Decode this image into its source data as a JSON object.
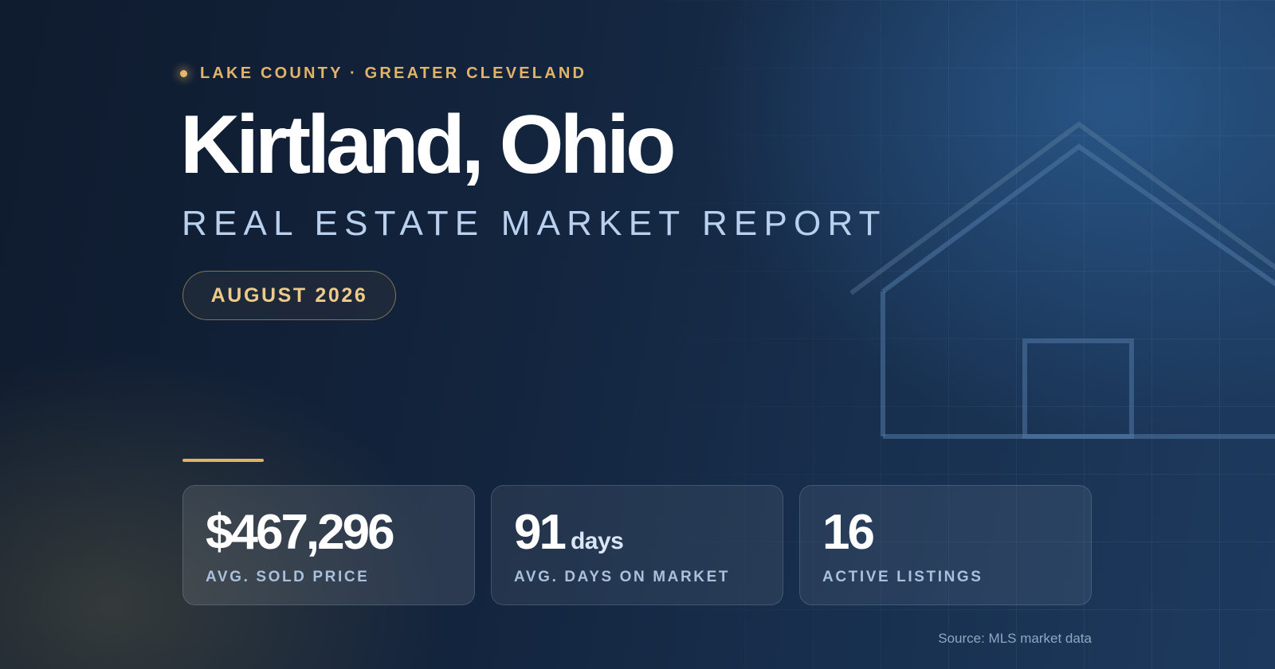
{
  "header": {
    "eyebrow": "LAKE COUNTY · GREATER CLEVELAND",
    "title": "Kirtland, Ohio",
    "subtitle": "REAL ESTATE MARKET REPORT",
    "period_badge": "AUGUST 2026"
  },
  "stats": [
    {
      "value": "$467,296",
      "unit": "",
      "label": "AVG. SOLD PRICE"
    },
    {
      "value": "91",
      "unit": "days",
      "label": "AVG. DAYS ON MARKET"
    },
    {
      "value": "16",
      "unit": "",
      "label": "ACTIVE LISTINGS"
    }
  ],
  "footer": {
    "source": "Source: MLS market data"
  },
  "colors": {
    "accent_gold": "#e2b46a",
    "background_navy": "#13243d",
    "subtitle_blue": "#b9d1ee"
  },
  "icons": {
    "background_illustration": "house-outline-icon",
    "eyebrow_marker": "dot-icon"
  }
}
